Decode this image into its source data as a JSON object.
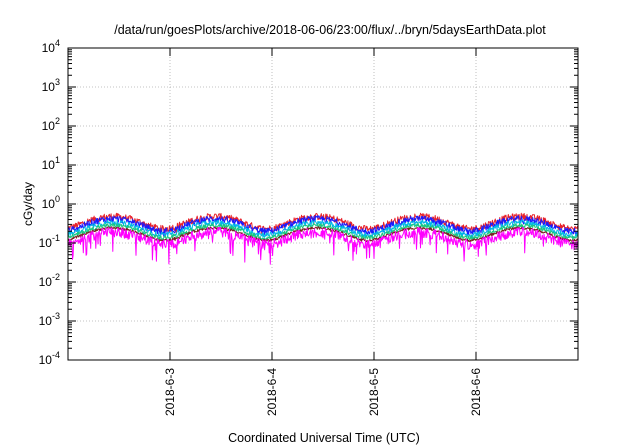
{
  "chart_data": {
    "type": "line",
    "title": "/data/run/goesPlots/archive/2018-06-06/23:00/flux/../bryn/5daysEarthData.plot",
    "xlabel": "Coordinated Universal Time (UTC)",
    "ylabel": "cGy/day",
    "yscale": "log",
    "ylim": [
      0.0001,
      10000
    ],
    "xlim": [
      "2018-06-02 00:00",
      "2018-06-07 00:00"
    ],
    "y_ticks": [
      {
        "value": 0.0001,
        "base": "10",
        "exp": "-4"
      },
      {
        "value": 0.001,
        "base": "10",
        "exp": "-3"
      },
      {
        "value": 0.01,
        "base": "10",
        "exp": "-2"
      },
      {
        "value": 0.1,
        "base": "10",
        "exp": "-1"
      },
      {
        "value": 1,
        "base": "10",
        "exp": "0"
      },
      {
        "value": 10,
        "base": "10",
        "exp": "1"
      },
      {
        "value": 100,
        "base": "10",
        "exp": "2"
      },
      {
        "value": 1000,
        "base": "10",
        "exp": "3"
      },
      {
        "value": 10000,
        "base": "10",
        "exp": "4"
      }
    ],
    "x_ticks": [
      {
        "value": "2018-06-03 00:00",
        "label": "2018-6-3"
      },
      {
        "value": "2018-06-04 00:00",
        "label": "2018-6-4"
      },
      {
        "value": "2018-06-05 00:00",
        "label": "2018-6-5"
      },
      {
        "value": "2018-06-06 00:00",
        "label": "2018-6-6"
      }
    ],
    "grid": true,
    "series": [
      {
        "color": "#e8222b",
        "level": 0.36,
        "amplitude": 0.4,
        "spikes": 0.35
      },
      {
        "color": "#1a1aff",
        "level": 0.31,
        "amplitude": 0.4,
        "spikes": 0.35
      },
      {
        "color": "#00b8e6",
        "level": 0.25,
        "amplitude": 0.3,
        "spikes": 0.25
      },
      {
        "color": "#19c880",
        "level": 0.21,
        "amplitude": 0.25,
        "spikes": 0.2
      },
      {
        "color": "#7a2020",
        "level": 0.18,
        "amplitude": 0.15,
        "spikes": 0.1
      },
      {
        "color": "#ff00ff",
        "level": 0.145,
        "amplitude": 0.6,
        "spikes": 1.0
      }
    ]
  }
}
